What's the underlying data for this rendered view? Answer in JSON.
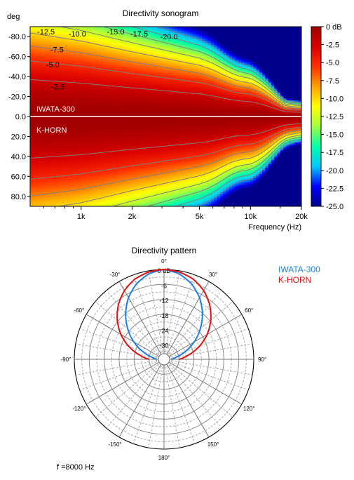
{
  "chart_data": [
    {
      "type": "heatmap",
      "title": "Directivity sonogram",
      "ylabel": "deg",
      "xlabel": "Frequency (Hz)",
      "x_scale": "log",
      "xlim": [
        500,
        20000
      ],
      "ylim": [
        -90,
        90
      ],
      "x_ticks": [
        {
          "value": 1000,
          "label": "1k"
        },
        {
          "value": 2000,
          "label": "2k"
        },
        {
          "value": 5000,
          "label": "5k"
        },
        {
          "value": 10000,
          "label": "10k"
        },
        {
          "value": 20000,
          "label": "20k"
        }
      ],
      "y_ticks": [
        {
          "value": -80,
          "label": "-80.0"
        },
        {
          "value": -60,
          "label": "-60.0"
        },
        {
          "value": -40,
          "label": "-40.0"
        },
        {
          "value": -20,
          "label": "-20.0"
        },
        {
          "value": 0,
          "label": "0.0"
        },
        {
          "value": 20,
          "label": "20.0"
        },
        {
          "value": 40,
          "label": "40.0"
        },
        {
          "value": 60,
          "label": "60.0"
        },
        {
          "value": 80,
          "label": "80.0"
        }
      ],
      "panel_labels": [
        {
          "text": "IWATA-300",
          "panel": "top"
        },
        {
          "text": "K-HORN",
          "panel": "bottom"
        }
      ],
      "colorbar": {
        "range": [
          -25,
          0
        ],
        "ticks": [
          {
            "value": 0,
            "label": "0 dB"
          },
          {
            "value": -2.5,
            "label": "-2.5"
          },
          {
            "value": -5,
            "label": "-5.0"
          },
          {
            "value": -7.5,
            "label": "-7.5"
          },
          {
            "value": -10,
            "label": "-10.0"
          },
          {
            "value": -12.5,
            "label": "-12.5"
          },
          {
            "value": -15,
            "label": "-15.0"
          },
          {
            "value": -17.5,
            "label": "-17.5"
          },
          {
            "value": -20,
            "label": "-20.0"
          },
          {
            "value": -22.5,
            "label": "-22.5"
          },
          {
            "value": -25,
            "label": "-25.0"
          }
        ],
        "colors": [
          "#00008c",
          "#0000ff",
          "#00c8ff",
          "#00ffaa",
          "#a0ff40",
          "#ffff00",
          "#ffa000",
          "#ff3000",
          "#d80000",
          "#a00000"
        ]
      },
      "contour_labels": [
        {
          "text": "-12.5",
          "freq": 620,
          "deg": -85
        },
        {
          "text": "-10.0",
          "freq": 950,
          "deg": -83
        },
        {
          "text": "-15.0",
          "freq": 1600,
          "deg": -85
        },
        {
          "text": "-17.5",
          "freq": 2200,
          "deg": -83
        },
        {
          "text": "-20.0",
          "freq": 3300,
          "deg": -80
        },
        {
          "text": "-7.5",
          "freq": 720,
          "deg": -67
        },
        {
          "text": "-5.0",
          "freq": 680,
          "deg": -52
        },
        {
          "text": "-2.5",
          "freq": 730,
          "deg": -30
        }
      ],
      "series": [
        {
          "name": "IWATA-300",
          "angle_range": [
            -90,
            0
          ],
          "minus6_beamwidth": {
            "freq": [
              500,
              1000,
              2000,
              5000,
              10000,
              13000,
              16000,
              20000
            ],
            "deg": [
              62,
              56,
              48,
              38,
              24,
              16,
              9,
              7
            ]
          }
        },
        {
          "name": "K-HORN",
          "angle_range": [
            0,
            90
          ],
          "minus6_beamwidth": {
            "freq": [
              500,
              1000,
              2000,
              5000,
              10000,
              13000,
              16000,
              20000
            ],
            "deg": [
              70,
              64,
              55,
              44,
              30,
              22,
              16,
              12
            ]
          }
        }
      ]
    },
    {
      "type": "polar",
      "title": "Directivity pattern",
      "frequency_label": "f =8000 Hz",
      "r_range_db": [
        -36,
        0
      ],
      "radial_ticks": [
        {
          "value": 0,
          "label": "0 dB"
        },
        {
          "value": -6,
          "label": "-6"
        },
        {
          "value": -12,
          "label": "-12"
        },
        {
          "value": -18,
          "label": "-18"
        },
        {
          "value": -24,
          "label": "-24"
        },
        {
          "value": -30,
          "label": "-30"
        }
      ],
      "angle_labels": [
        {
          "angle": 0,
          "label": "0°"
        },
        {
          "angle": -30,
          "label": "-30°"
        },
        {
          "angle": 30,
          "label": "30°"
        },
        {
          "angle": -60,
          "label": "-60°"
        },
        {
          "angle": 60,
          "label": "60°"
        },
        {
          "angle": -90,
          "label": "-90°"
        },
        {
          "angle": 90,
          "label": "90°"
        },
        {
          "angle": -120,
          "label": "-120°"
        },
        {
          "angle": 120,
          "label": "120°"
        },
        {
          "angle": -150,
          "label": "-150°"
        },
        {
          "angle": 150,
          "label": "150°"
        },
        {
          "angle": 180,
          "label": "180°"
        }
      ],
      "legend_position": "top-right",
      "series": [
        {
          "name": "IWATA-300",
          "color": "#1e7fe0",
          "angles": [
            0,
            10,
            20,
            30,
            40,
            50,
            60,
            70,
            80,
            90
          ],
          "db": [
            0,
            -1.2,
            -3.8,
            -7.5,
            -12,
            -17,
            -22,
            -27,
            -31,
            -33
          ]
        },
        {
          "name": "K-HORN",
          "color": "#e01010",
          "angles": [
            0,
            10,
            20,
            30,
            40,
            50,
            60,
            70,
            80,
            90
          ],
          "db": [
            0,
            -0.5,
            -1.8,
            -4.2,
            -7.5,
            -11.5,
            -16,
            -21,
            -26,
            -30
          ]
        }
      ]
    }
  ]
}
